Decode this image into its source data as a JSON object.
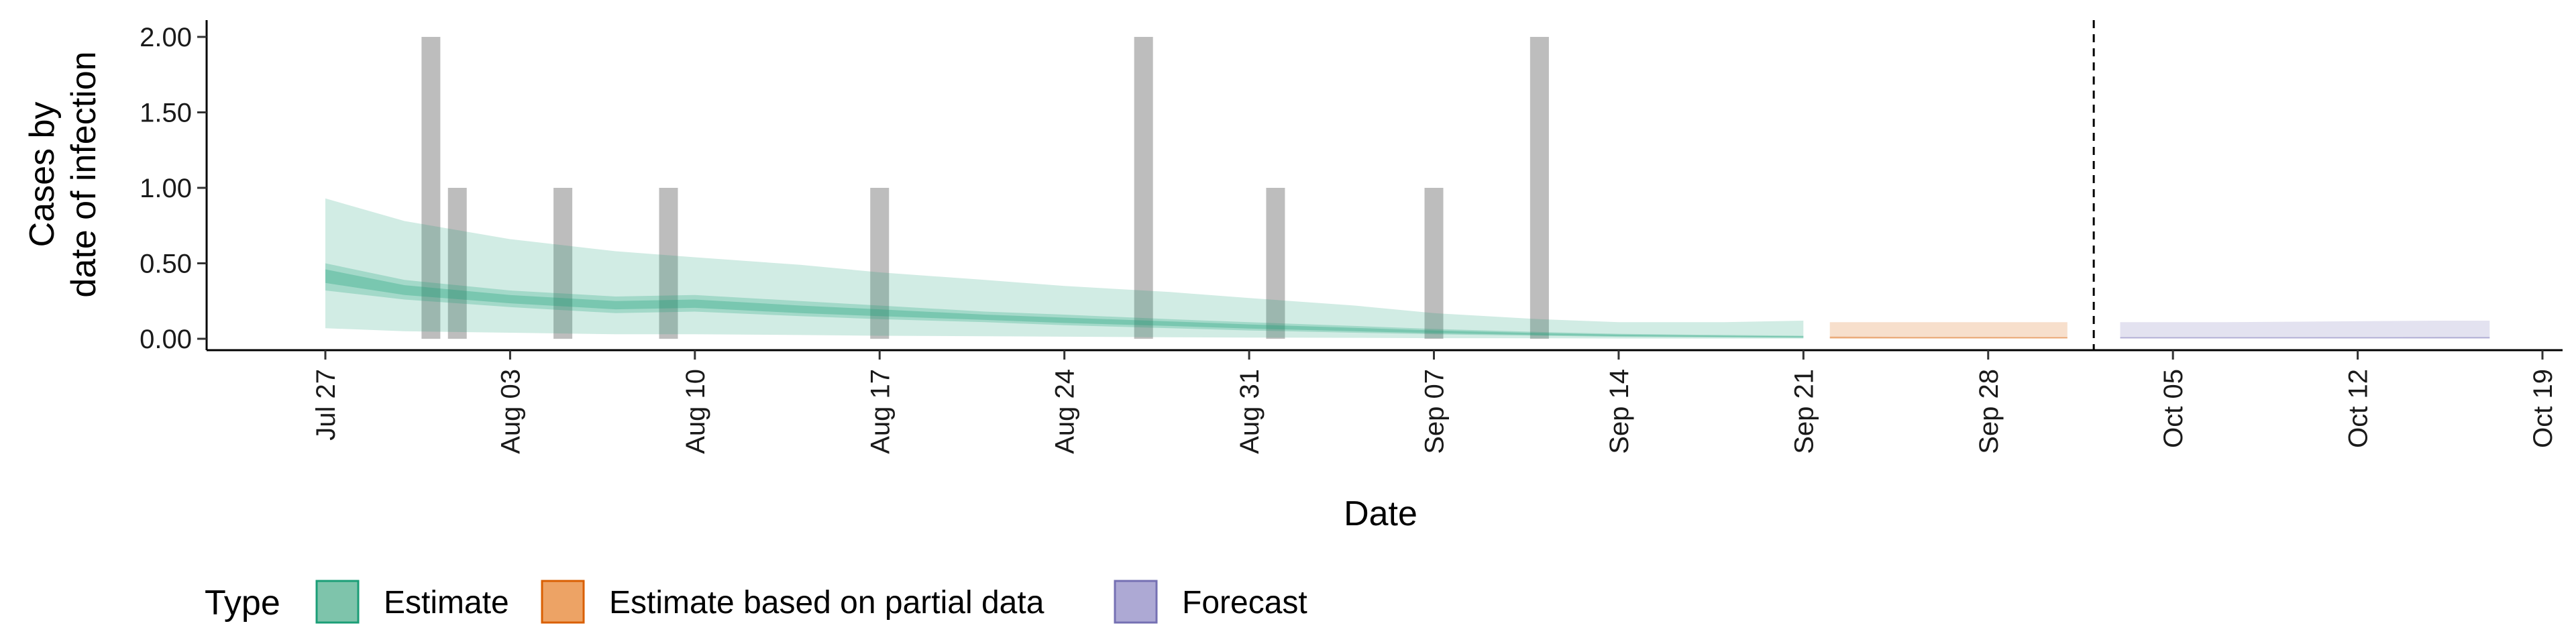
{
  "chart_data": {
    "type": "area",
    "x_axis": {
      "label": "Date",
      "ticks": [
        "Jul 27",
        "Aug 03",
        "Aug 10",
        "Aug 17",
        "Aug 24",
        "Aug 31",
        "Sep 07",
        "Sep 14",
        "Sep 21",
        "Sep 28",
        "Oct 05",
        "Oct 12",
        "Oct 19"
      ],
      "range": [
        "2020-07-25",
        "2020-10-19"
      ]
    },
    "y_axis": {
      "label": [
        "Cases by",
        "date of infection"
      ],
      "ticks": [
        "0.00",
        "0.50",
        "1.00",
        "1.50",
        "2.00"
      ],
      "range": [
        -0.08,
        2.1
      ]
    },
    "reported_cases": {
      "dates": [
        "2020-07-31",
        "2020-08-01",
        "2020-08-05",
        "2020-08-09",
        "2020-08-17",
        "2020-08-27",
        "2020-09-01",
        "2020-09-07",
        "2020-09-11"
      ],
      "values": [
        2,
        1,
        1,
        1,
        1,
        2,
        1,
        1,
        2
      ],
      "color": "#bdbdbd"
    },
    "series": [
      {
        "name": "Estimate",
        "color": "#1b9e77",
        "dates": [
          "2020-07-27",
          "2020-07-30",
          "2020-08-03",
          "2020-08-07",
          "2020-08-10",
          "2020-08-14",
          "2020-08-17",
          "2020-08-21",
          "2020-08-24",
          "2020-08-28",
          "2020-08-31",
          "2020-09-04",
          "2020-09-07",
          "2020-09-11",
          "2020-09-14",
          "2020-09-18",
          "2020-09-21"
        ],
        "median": [
          0.42,
          0.32,
          0.26,
          0.22,
          0.23,
          0.19,
          0.17,
          0.14,
          0.12,
          0.1,
          0.08,
          0.06,
          0.045,
          0.03,
          0.022,
          0.016,
          0.012
        ],
        "inner_low": [
          0.32,
          0.26,
          0.21,
          0.17,
          0.18,
          0.15,
          0.13,
          0.11,
          0.09,
          0.07,
          0.055,
          0.04,
          0.03,
          0.02,
          0.013,
          0.009,
          0.006
        ],
        "inner_high": [
          0.5,
          0.39,
          0.32,
          0.28,
          0.29,
          0.25,
          0.22,
          0.18,
          0.16,
          0.13,
          0.11,
          0.085,
          0.065,
          0.045,
          0.033,
          0.025,
          0.02
        ],
        "outer_low": [
          0.07,
          0.05,
          0.04,
          0.03,
          0.03,
          0.025,
          0.02,
          0.017,
          0.014,
          0.01,
          0.008,
          0.006,
          0.004,
          0.003,
          0.002,
          0.001,
          0.001
        ],
        "outer_high": [
          0.93,
          0.78,
          0.66,
          0.58,
          0.54,
          0.49,
          0.44,
          0.39,
          0.35,
          0.31,
          0.27,
          0.22,
          0.17,
          0.13,
          0.11,
          0.11,
          0.12
        ]
      },
      {
        "name": "Estimate based on partial data",
        "color": "#d95f02",
        "dates": [
          "2020-09-22",
          "2020-09-25",
          "2020-09-28",
          "2020-10-01"
        ],
        "median": [
          0.008,
          0.007,
          0.007,
          0.006
        ],
        "inner_low": [
          0.003,
          0.003,
          0.003,
          0.003
        ],
        "inner_high": [
          0.015,
          0.013,
          0.013,
          0.012
        ],
        "outer_low": [
          0.0,
          0.0,
          0.0,
          0.0
        ],
        "outer_high": [
          0.11,
          0.11,
          0.11,
          0.11
        ]
      },
      {
        "name": "Forecast",
        "color": "#7570b3",
        "dates": [
          "2020-10-03",
          "2020-10-07",
          "2020-10-11",
          "2020-10-15",
          "2020-10-17"
        ],
        "median": [
          0.006,
          0.006,
          0.006,
          0.006,
          0.006
        ],
        "inner_low": [
          0.003,
          0.003,
          0.003,
          0.003,
          0.003
        ],
        "inner_high": [
          0.012,
          0.012,
          0.012,
          0.013,
          0.013
        ],
        "outer_low": [
          0.0,
          0.0,
          0.0,
          0.0,
          0.0
        ],
        "outer_high": [
          0.11,
          0.11,
          0.115,
          0.12,
          0.12
        ]
      }
    ],
    "vline": {
      "date": "2020-10-02",
      "style": "dashed"
    },
    "grid": false,
    "legend": {
      "title": "Type",
      "position": "bottom-left",
      "entries": [
        {
          "label": "Estimate",
          "fill": "#7ec4ab",
          "stroke": "#1b9e77"
        },
        {
          "label": "Estimate based on partial data",
          "fill": "#eda365",
          "stroke": "#d95f02"
        },
        {
          "label": "Forecast",
          "fill": "#ada9d4",
          "stroke": "#7570b3"
        }
      ]
    }
  }
}
